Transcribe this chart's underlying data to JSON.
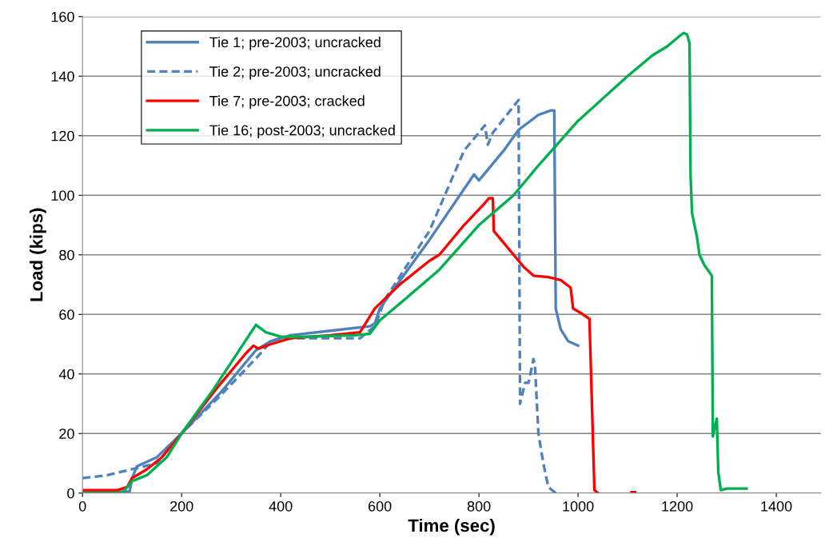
{
  "chart_data": {
    "type": "line",
    "xlabel": "Time (sec)",
    "ylabel": "Load (kips)",
    "xlim": [
      0,
      1490
    ],
    "xticks": [
      0,
      200,
      400,
      600,
      800,
      1000,
      1200,
      1400
    ],
    "ylim": [
      0,
      160
    ],
    "yticks": [
      0,
      20,
      40,
      60,
      80,
      100,
      120,
      140,
      160
    ],
    "grid": "y",
    "legend": "top left",
    "series": [
      {
        "name": "Tie 1; pre-2003; uncracked",
        "color": "#4f81bd",
        "line_style": "solid",
        "x": [
          0,
          95,
          100,
          110,
          150,
          200,
          280,
          350,
          380,
          420,
          500,
          580,
          590,
          600,
          700,
          790,
          800,
          850,
          880,
          920,
          945,
          952,
          955,
          965,
          980,
          1000
        ],
        "values": [
          0.5,
          0.5,
          5,
          9,
          12,
          20,
          34,
          48,
          51,
          53,
          54.5,
          56,
          57,
          62,
          85,
          107,
          105,
          115,
          122,
          127,
          128.5,
          128.5,
          62,
          55,
          51,
          49.5
        ]
      },
      {
        "name": "Tie 2; pre-2003; uncracked",
        "color": "#4f81bd",
        "line_style": "dashed",
        "x": [
          0,
          50,
          100,
          150,
          200,
          280,
          360,
          380,
          400,
          560,
          590,
          610,
          700,
          770,
          812,
          818,
          828,
          880,
          883,
          893,
          900,
          910,
          913,
          920,
          930,
          940,
          955
        ],
        "values": [
          5,
          6,
          8,
          10,
          20,
          33,
          47,
          51,
          52,
          52,
          56,
          65,
          88,
          115,
          123.5,
          117,
          121,
          132,
          30,
          37,
          37,
          45,
          43,
          20,
          10,
          2,
          0
        ]
      },
      {
        "name": "Tie 7; pre-2003; cracked",
        "color": "#ff0000",
        "line_style": "solid",
        "x": [
          0,
          70,
          90,
          100,
          130,
          160,
          200,
          270,
          330,
          345,
          355,
          380,
          420,
          500,
          560,
          590,
          640,
          700,
          720,
          770,
          810,
          820,
          828,
          830,
          845,
          870,
          890,
          910,
          940,
          965,
          985,
          990,
          1010,
          1023,
          1028,
          1033,
          1040,
          1075,
          1108,
          1115
        ],
        "values": [
          1,
          1,
          2,
          5,
          8,
          12,
          20,
          35,
          47,
          49.5,
          48.5,
          50,
          52,
          53,
          54,
          62,
          70,
          78,
          80,
          90,
          97,
          99,
          99,
          88,
          85,
          80,
          76,
          73,
          72.5,
          71.5,
          69,
          62,
          60,
          58.5,
          30,
          1,
          0,
          null,
          0.3,
          0.3
        ]
      },
      {
        "name": "Tie 16; post-2003; uncracked",
        "color": "#00b050",
        "line_style": "solid",
        "x": [
          0,
          80,
          100,
          130,
          170,
          200,
          265,
          350,
          370,
          400,
          450,
          550,
          580,
          600,
          650,
          720,
          800,
          870,
          920,
          1000,
          1060,
          1100,
          1150,
          1180,
          1205,
          1213,
          1220,
          1225,
          1227,
          1230,
          1240,
          1245,
          1255,
          1270,
          1272,
          1280,
          1283,
          1288,
          1300,
          1340
        ],
        "values": [
          0,
          0,
          4,
          6,
          12,
          20,
          35,
          56.5,
          54,
          52.5,
          52.5,
          53,
          53.5,
          58,
          65,
          75,
          90,
          100,
          110,
          125,
          134,
          140,
          147,
          150,
          153.5,
          154.5,
          154,
          151,
          107,
          94,
          86,
          80,
          76.5,
          73,
          19,
          25,
          7,
          1,
          1.5,
          1.5
        ]
      }
    ]
  }
}
